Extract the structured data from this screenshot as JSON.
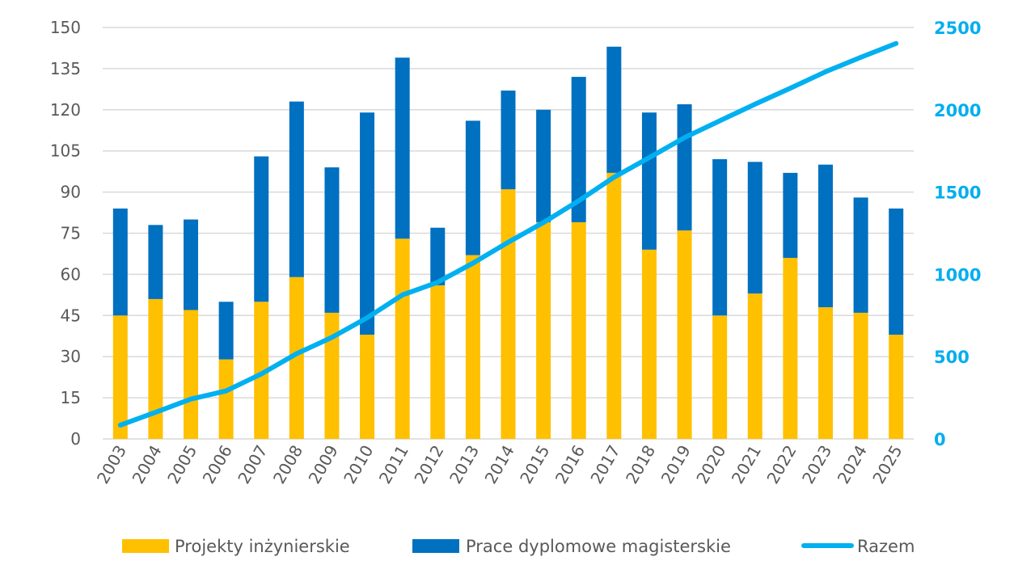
{
  "chart_data": {
    "type": "bar",
    "stacked": true,
    "categories": [
      "2003",
      "2004",
      "2005",
      "2006",
      "2007",
      "2008",
      "2009",
      "2010",
      "2011",
      "2012",
      "2013",
      "2014",
      "2015",
      "2016",
      "2017",
      "2018",
      "2019",
      "2020",
      "2021",
      "2022",
      "2023",
      "2024",
      "2025"
    ],
    "series": [
      {
        "name": "Projekty inżynierskie",
        "type": "bar",
        "axis": "left",
        "color": "#ffc000",
        "values": [
          45,
          51,
          47,
          29,
          50,
          59,
          46,
          38,
          73,
          56,
          67,
          91,
          79,
          79,
          97,
          69,
          76,
          45,
          53,
          66,
          48,
          46,
          38
        ]
      },
      {
        "name": "Prace dyplomowe magisterskie",
        "type": "bar",
        "axis": "left",
        "color": "#0070c0",
        "values": [
          39,
          27,
          33,
          21,
          53,
          64,
          53,
          81,
          66,
          21,
          49,
          36,
          41,
          53,
          46,
          50,
          46,
          57,
          48,
          31,
          52,
          42,
          46
        ]
      },
      {
        "name": "Razem",
        "type": "line",
        "axis": "right",
        "color": "#00b0f0",
        "values": [
          84,
          162,
          242,
          292,
          395,
          518,
          617,
          736,
          875,
          952,
          1068,
          1195,
          1315,
          1447,
          1590,
          1709,
          1831,
          1933,
          2034,
          2131,
          2231,
          2319,
          2403
        ]
      }
    ],
    "y_left": {
      "min": 0,
      "max": 150,
      "ticks": [
        "0",
        "15",
        "30",
        "45",
        "60",
        "75",
        "90",
        "105",
        "120",
        "135",
        "150"
      ]
    },
    "y_right": {
      "min": 0,
      "max": 2500,
      "ticks": [
        "0",
        "500",
        "1000",
        "1500",
        "2000",
        "2500"
      ]
    },
    "grid": true,
    "legend_position": "bottom"
  }
}
